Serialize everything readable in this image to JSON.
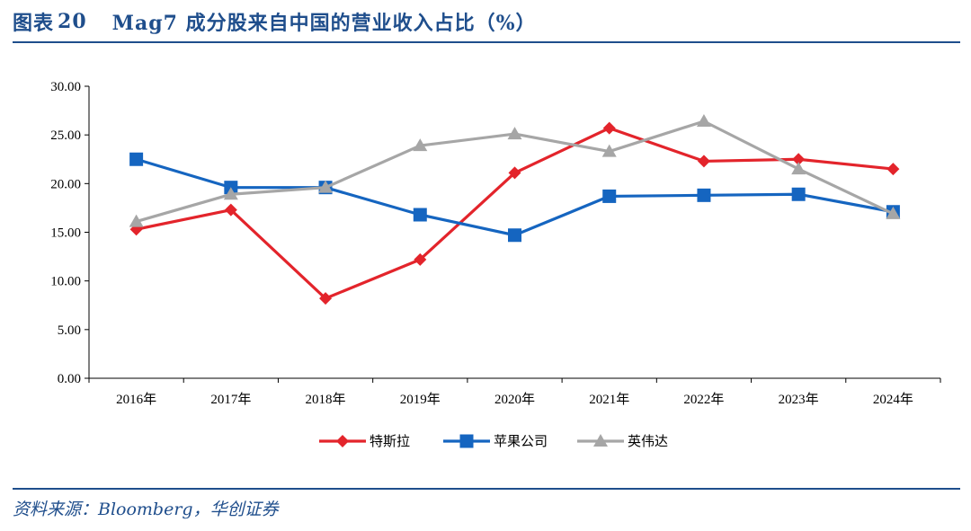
{
  "header": {
    "figure_label": "图表",
    "figure_number": "20",
    "title": "Mag7 成分股来自中国的营业收入占比（%）"
  },
  "source": "资料来源：Bloomberg，华创证券",
  "colors": {
    "accent": "#1f4e8c",
    "tesla": "#e3242b",
    "apple": "#1565c0",
    "nvidia": "#a6a6a6"
  },
  "chart_data": {
    "type": "line",
    "categories": [
      "2016年",
      "2017年",
      "2018年",
      "2019年",
      "2020年",
      "2021年",
      "2022年",
      "2023年",
      "2024年"
    ],
    "ylim": [
      0,
      30
    ],
    "y_ticks": [
      "0.00",
      "5.00",
      "10.00",
      "15.00",
      "20.00",
      "25.00",
      "30.00"
    ],
    "grid": false,
    "legend_position": "bottom",
    "series": [
      {
        "name": "特斯拉",
        "color": "#e3242b",
        "marker": "diamond",
        "values": [
          15.3,
          17.3,
          8.2,
          12.2,
          21.1,
          25.7,
          22.3,
          22.5,
          21.5
        ]
      },
      {
        "name": "苹果公司",
        "color": "#1565c0",
        "marker": "square",
        "values": [
          22.5,
          19.6,
          19.6,
          16.8,
          14.7,
          18.7,
          18.8,
          18.9,
          17.1
        ]
      },
      {
        "name": "英伟达",
        "color": "#a6a6a6",
        "marker": "triangle",
        "values": [
          16.1,
          18.9,
          19.6,
          23.9,
          25.1,
          23.3,
          26.4,
          21.5,
          16.9
        ]
      }
    ]
  }
}
